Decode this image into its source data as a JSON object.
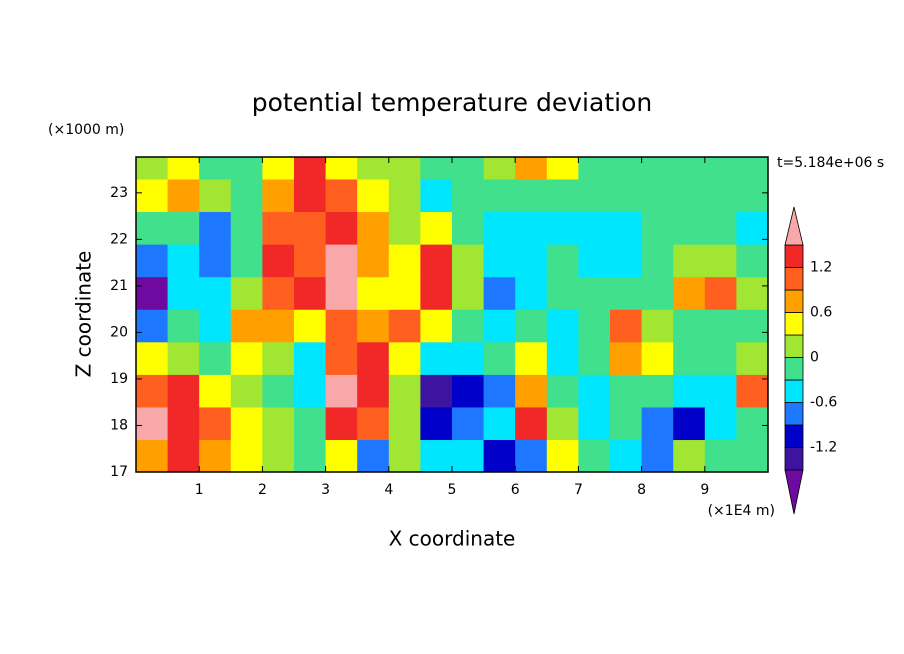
{
  "chart_data": {
    "type": "contour",
    "title": "potential temperature deviation",
    "xlabel": "X coordinate",
    "ylabel": "Z coordinate",
    "xunit": "(×1E4 m)",
    "yunit": "(×1000 m)",
    "annotation": "t=5.184e+06 s",
    "xlim": [
      0,
      10
    ],
    "ylim": [
      17,
      23.77
    ],
    "xticks": [
      1,
      2,
      3,
      4,
      5,
      6,
      7,
      8,
      9
    ],
    "yticks": [
      17,
      18,
      19,
      20,
      21,
      22,
      23
    ],
    "levels": [
      -1.5,
      -1.2,
      -0.9,
      -0.6,
      -0.3,
      0,
      0.3,
      0.6,
      0.9,
      1.2,
      1.5
    ],
    "colors": [
      "#6e0aa0",
      "#3c14a0",
      "#0000c8",
      "#1e78ff",
      "#00e6ff",
      "#40e08c",
      "#a0e632",
      "#ffff00",
      "#ffa000",
      "#ff6020",
      "#f02828",
      "#f8a8a8"
    ],
    "colorbar_ticks": [
      1.2,
      0.6,
      0,
      -0.6,
      -1.2
    ],
    "x": [
      0.25,
      0.75,
      1.25,
      1.75,
      2.25,
      2.75,
      3.25,
      3.75,
      4.25,
      4.75,
      5.25,
      5.75,
      6.25,
      6.75,
      7.25,
      7.75,
      8.25,
      8.75,
      9.25,
      9.75
    ],
    "y": [
      17.35,
      18.05,
      18.75,
      19.45,
      20.15,
      20.85,
      21.55,
      22.25,
      22.95,
      23.65
    ],
    "z": [
      [
        0.6,
        1.2,
        0.6,
        0.5,
        0.1,
        -0.2,
        0.3,
        -0.8,
        0.2,
        -0.4,
        -0.4,
        -1.0,
        -0.8,
        0.5,
        -0.1,
        -0.4,
        -0.7,
        0.1,
        -0.2,
        -0.1
      ],
      [
        1.6,
        1.3,
        1.0,
        0.5,
        0.1,
        -0.3,
        1.4,
        1.0,
        0.0,
        -1.0,
        -0.9,
        -0.5,
        1.3,
        0.2,
        -0.4,
        -0.3,
        -0.8,
        -1.2,
        -0.6,
        -0.2
      ],
      [
        1.0,
        1.2,
        0.3,
        0.2,
        -0.3,
        -0.6,
        1.6,
        1.4,
        0.2,
        -1.3,
        -1.1,
        -0.8,
        0.8,
        -0.2,
        -0.5,
        -0.1,
        -0.3,
        -0.5,
        -0.4,
        0.9
      ],
      [
        0.3,
        0.0,
        -0.2,
        0.4,
        0.0,
        -0.4,
        1.0,
        1.3,
        0.3,
        -0.4,
        -0.5,
        -0.3,
        0.4,
        -0.4,
        -0.2,
        0.6,
        0.3,
        -0.3,
        -0.2,
        0.1
      ],
      [
        -0.9,
        -0.3,
        -0.5,
        0.6,
        0.8,
        0.3,
        1.1,
        0.6,
        1.1,
        0.5,
        -0.2,
        -0.6,
        -0.3,
        -0.4,
        -0.2,
        0.9,
        0.2,
        -0.2,
        -0.1,
        -0.3
      ],
      [
        -1.6,
        -0.4,
        -0.6,
        0.1,
        1.0,
        1.2,
        1.6,
        0.5,
        0.4,
        1.2,
        0.0,
        -0.8,
        -0.5,
        -0.3,
        -0.1,
        -0.2,
        -0.1,
        0.7,
        0.9,
        0.1
      ],
      [
        -0.7,
        -0.4,
        -0.8,
        -0.3,
        1.3,
        1.1,
        1.6,
        0.8,
        0.3,
        1.3,
        0.1,
        -0.5,
        -0.5,
        -0.3,
        -0.4,
        -0.6,
        -0.3,
        0.1,
        0.2,
        -0.1
      ],
      [
        -0.2,
        -0.1,
        -0.9,
        -0.2,
        0.9,
        1.0,
        1.4,
        0.7,
        0.2,
        0.4,
        -0.3,
        -0.5,
        -0.4,
        -0.6,
        -0.4,
        -0.4,
        -0.3,
        -0.2,
        -0.3,
        -0.4
      ],
      [
        0.3,
        0.8,
        0.1,
        -0.3,
        0.6,
        1.4,
        0.9,
        0.4,
        0.0,
        -0.4,
        -0.2,
        -0.3,
        -0.1,
        -0.3,
        -0.1,
        -0.2,
        -0.1,
        -0.1,
        -0.2,
        -0.3
      ],
      [
        0.0,
        0.3,
        -0.2,
        -0.1,
        0.5,
        1.3,
        0.3,
        0.1,
        0.1,
        -0.2,
        -0.1,
        0.2,
        0.7,
        0.3,
        -0.1,
        -0.2,
        -0.1,
        -0.1,
        -0.2,
        -0.2
      ]
    ]
  }
}
